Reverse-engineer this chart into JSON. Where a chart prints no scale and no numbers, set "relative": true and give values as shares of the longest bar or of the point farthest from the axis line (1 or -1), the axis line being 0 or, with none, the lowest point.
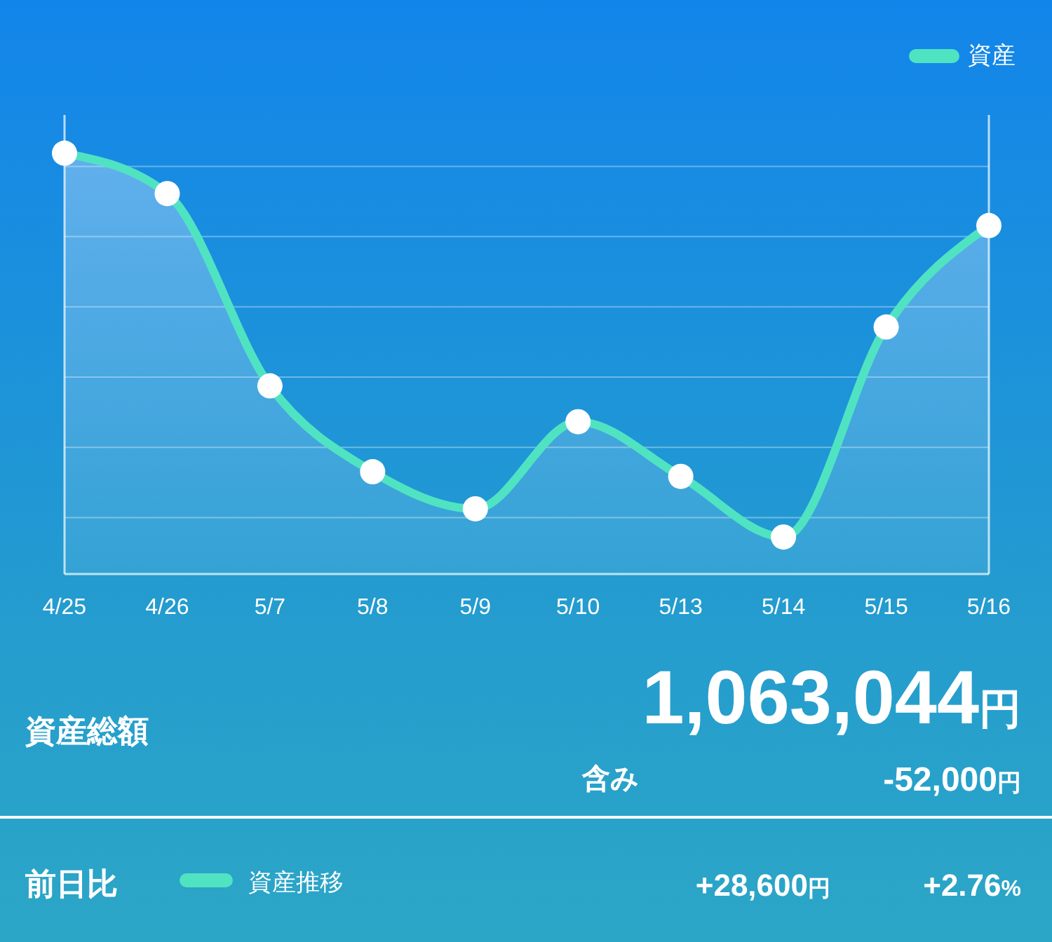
{
  "chart_data": {
    "type": "area",
    "relative": true,
    "categories": [
      "4/25",
      "4/26",
      "5/7",
      "5/8",
      "5/9",
      "5/10",
      "5/13",
      "5/14",
      "5/15",
      "5/16"
    ],
    "series": [
      {
        "name": "資産",
        "color": "#50e3c2",
        "values": [
          1,
          0.904,
          0.447,
          0.243,
          0.155,
          0.362,
          0.232,
          0.088,
          0.587,
          0.828
        ]
      }
    ],
    "marker": "circle",
    "grid": "y",
    "legend": "top right",
    "annotations": [
      "資産総額",
      "1,063,044円",
      "含み",
      "-52,000円",
      "前日比",
      "資産推移",
      "+28,600円",
      "+2.76%"
    ]
  }
}
